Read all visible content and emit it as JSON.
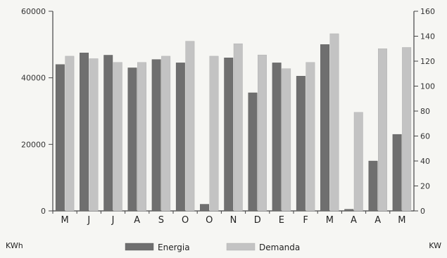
{
  "chart_data": {
    "type": "bar",
    "categories": [
      "M",
      "J",
      "J",
      "A",
      "S",
      "O",
      "O",
      "N",
      "D",
      "E",
      "F",
      "M",
      "A",
      "A",
      "M"
    ],
    "series": [
      {
        "name": "Energia",
        "axis": "left",
        "color": "#6f6f6f",
        "values": [
          44000,
          47500,
          46800,
          43000,
          45500,
          44500,
          2000,
          46000,
          35500,
          44500,
          40500,
          50000,
          500,
          15000,
          23000
        ]
      },
      {
        "name": "Demanda",
        "axis": "right",
        "color": "#c3c3c3",
        "values": [
          124,
          122,
          119,
          119,
          124,
          136,
          124,
          134,
          125,
          114,
          119,
          142,
          79,
          130,
          131
        ]
      }
    ],
    "left_axis": {
      "label": "KWh",
      "ylim": [
        0,
        60000
      ],
      "ticks": [
        0,
        20000,
        40000,
        60000
      ]
    },
    "right_axis": {
      "label": "KW",
      "ylim": [
        0,
        160
      ],
      "ticks": [
        0,
        20,
        40,
        60,
        80,
        100,
        120,
        140,
        160
      ]
    },
    "legend": {
      "position": "bottom",
      "entries": [
        "Energia",
        "Demanda"
      ]
    },
    "grid": false
  }
}
